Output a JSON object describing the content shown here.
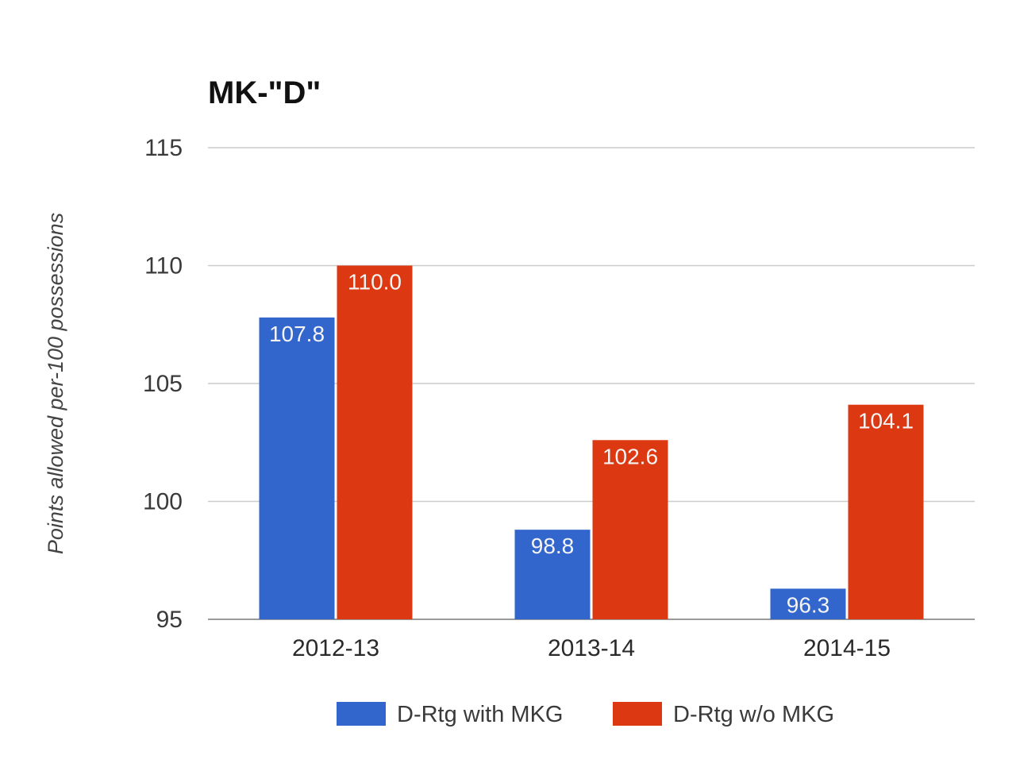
{
  "chart_data": {
    "type": "bar",
    "title": "MK-\"D\"",
    "xlabel": "",
    "ylabel": "Points allowed per-100 possessions",
    "ylim": [
      95,
      115
    ],
    "yticks": [
      115,
      110,
      105,
      100,
      95
    ],
    "grid": true,
    "legend_position": "bottom",
    "categories": [
      "2012-13",
      "2013-14",
      "2014-15"
    ],
    "series": [
      {
        "name": "D-Rtg with MKG",
        "color": "#3366cc",
        "values": [
          107.8,
          98.8,
          96.3
        ],
        "labels": [
          "107.8",
          "98.8",
          "96.3"
        ]
      },
      {
        "name": "D-Rtg w/o MKG",
        "color": "#dc3912",
        "values": [
          110.0,
          102.6,
          104.1
        ],
        "labels": [
          "110.0",
          "102.6",
          "104.1"
        ]
      }
    ]
  }
}
